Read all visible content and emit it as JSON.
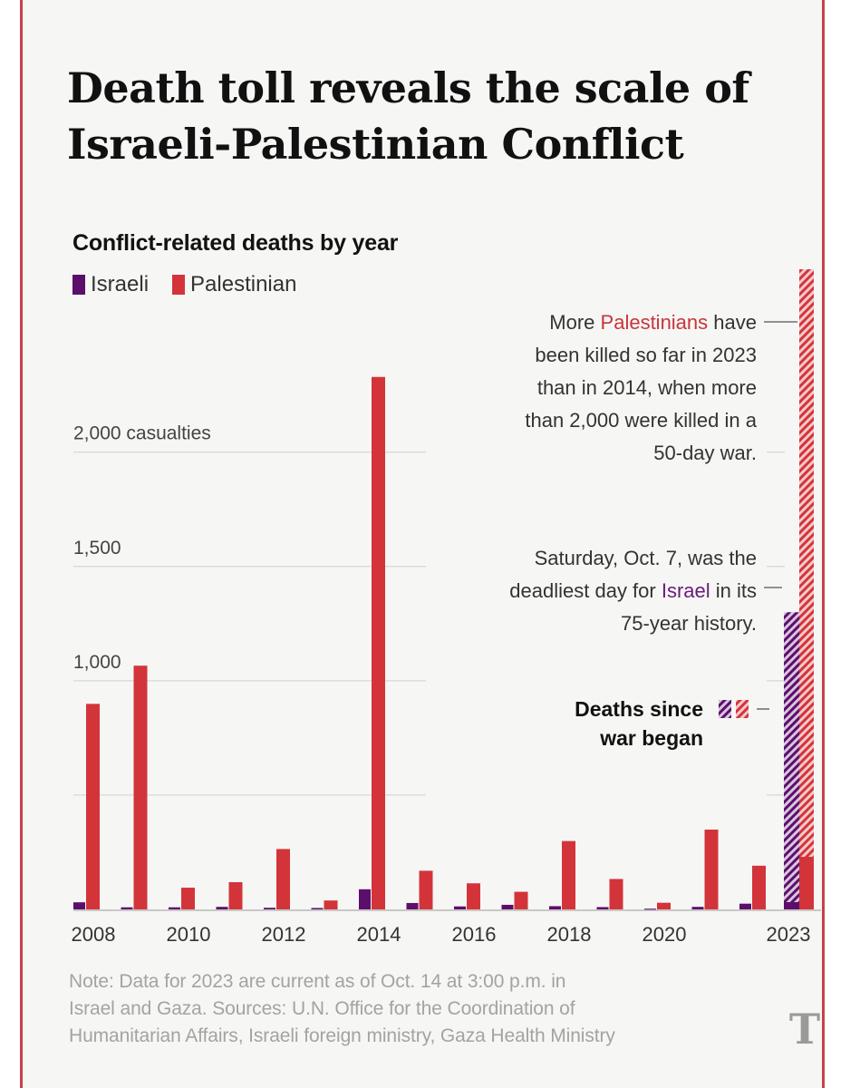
{
  "title_line1": "Death toll reveals the scale of",
  "title_line2": "Israeli-Palestinian Conflict",
  "chart_data": {
    "type": "bar",
    "title": "Conflict-related deaths by year",
    "categories": [
      "2008",
      "2009",
      "2010",
      "2011",
      "2012",
      "2013",
      "2014",
      "2015",
      "2016",
      "2017",
      "2018",
      "2019",
      "2020",
      "2021",
      "2022",
      "2023"
    ],
    "series": [
      {
        "name": "Israeli",
        "color": "#5b0f6b",
        "values": [
          31,
          9,
          9,
          11,
          7,
          6,
          88,
          28,
          13,
          20,
          14,
          10,
          3,
          11,
          25,
          1300
        ]
      },
      {
        "name": "Palestinian",
        "color": "#d3343a",
        "values": [
          899,
          1066,
          95,
          119,
          264,
          39,
          2329,
          169,
          114,
          77,
          299,
          133,
          29,
          349,
          191,
          2800
        ]
      }
    ],
    "since_war_2023": {
      "israeli": 1300,
      "palestinian": 2570
    },
    "ylim": [
      0,
      2800
    ],
    "yticks": [
      {
        "value": 2000,
        "label": "2,000 casualties"
      },
      {
        "value": 1500,
        "label": "1,500"
      },
      {
        "value": 1000,
        "label": "1,000"
      },
      {
        "value": 500,
        "label": ""
      }
    ],
    "xtick_labels": [
      "2008",
      "2010",
      "2012",
      "2014",
      "2016",
      "2018",
      "2020",
      "2023"
    ],
    "legend_position": "top-left"
  },
  "annotations": {
    "palestinians": {
      "line1_pre": "More ",
      "line1_hl": "Palestinians",
      "line1_post": " have",
      "line2": "been killed so far in 2023",
      "line3": "than in 2014, when more",
      "line4": "than 2,000 were killed in a",
      "line5": "50-day war."
    },
    "israel": {
      "line1": "Saturday, Oct. 7, was the",
      "line2_pre": "deadliest day for ",
      "line2_hl": "Israel",
      "line2_post": " in its",
      "line3": "75-year history."
    },
    "since_war": {
      "line1": "Deaths since",
      "line2": "war began"
    }
  },
  "note": {
    "line1": "Note: Data for 2023 are current as of Oct. 14 at 3:00 p.m. in",
    "line2": "Israel and Gaza. Sources: U.N. Office for the Coordination of",
    "line3": "Humanitarian Affairs, Israeli foreign ministry, Gaza Health Ministry"
  },
  "logo_text": "T",
  "colors": {
    "palestinian": "#d3343a",
    "israeli": "#5b0f6b",
    "gridline": "#d0d0d0",
    "frame": "#c7424a"
  }
}
